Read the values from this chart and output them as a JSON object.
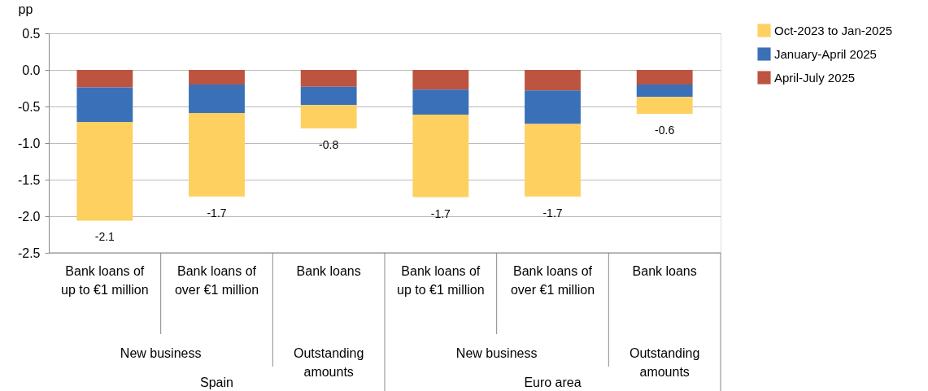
{
  "chart_data": {
    "type": "bar",
    "stacked": true,
    "ylabel": "pp",
    "categories": [
      "Bank loans of up to €1 million",
      "Bank loans of over €1 million",
      "Bank loans",
      "Bank loans of up to €1 million",
      "Bank loans of over €1 million",
      "Bank loans"
    ],
    "series": [
      {
        "name": "April-July 2025",
        "color": "#bc5440",
        "values": [
          -0.24,
          -0.2,
          -0.23,
          -0.27,
          -0.28,
          -0.2
        ]
      },
      {
        "name": "January-April 2025",
        "color": "#3a70b8",
        "values": [
          -0.47,
          -0.39,
          -0.25,
          -0.34,
          -0.46,
          -0.17
        ]
      },
      {
        "name": "Oct-2023 to Jan-2025",
        "color": "#fdd060",
        "values": [
          -1.35,
          -1.14,
          -0.32,
          -1.13,
          -0.99,
          -0.23
        ]
      }
    ],
    "totals": [
      "-2.1",
      "-1.7",
      "-0.8",
      "-1.7",
      "-1.7",
      "-0.6"
    ],
    "ylim": [
      -2.5,
      0.5
    ],
    "yticks": [
      0.5,
      {
        "value": 0,
        "label": "0.0"
      },
      -0.5,
      {
        "value": -1,
        "label": "-1.0"
      },
      -1.5,
      {
        "value": -2,
        "label": "-2.0"
      },
      -2.5
    ],
    "grid": "y",
    "legend": "top right",
    "annotations": [
      "New business",
      "Outstanding amounts",
      "New business",
      "Outstanding amounts",
      "Spain",
      "Euro area"
    ]
  }
}
